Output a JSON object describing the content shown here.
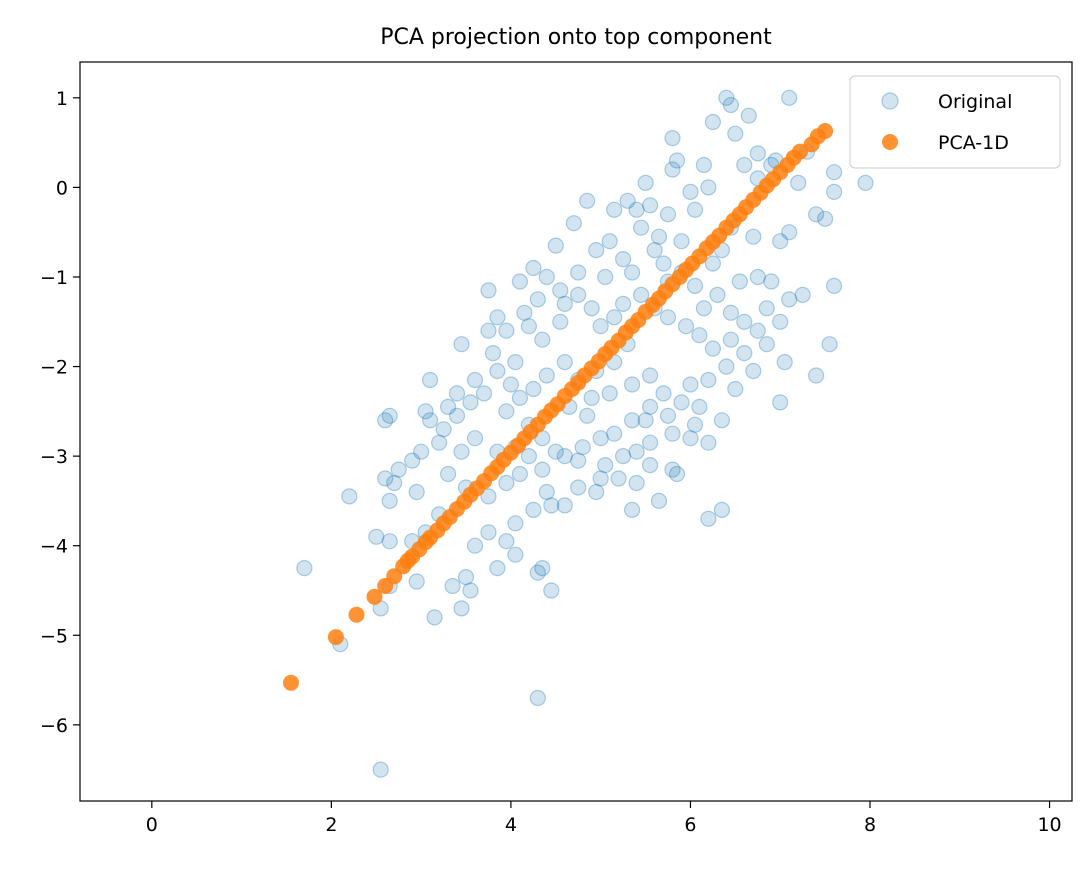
{
  "chart_data": {
    "type": "scatter",
    "title": "PCA projection onto top component",
    "xlabel": "",
    "ylabel": "",
    "xlim": [
      -0.8,
      10.25
    ],
    "ylim": [
      -6.85,
      1.4
    ],
    "xticks": [
      0,
      2,
      4,
      6,
      8,
      10
    ],
    "xtick_labels": [
      "0",
      "2",
      "4",
      "6",
      "8",
      "10"
    ],
    "yticks": [
      1,
      0,
      -1,
      -2,
      -3,
      -4,
      -5,
      -6
    ],
    "ytick_labels": [
      "1",
      "0",
      "−1",
      "−2",
      "−3",
      "−4",
      "−5",
      "−6"
    ],
    "grid": false,
    "legend_position": "top-right",
    "colors": {
      "original": "#1f77b4",
      "pca": "#ff7f0e"
    },
    "series": [
      {
        "name": "Original",
        "style": "hollow-translucent",
        "points": [
          [
            6.4,
            1.0
          ],
          [
            7.1,
            1.0
          ],
          [
            6.45,
            0.92
          ],
          [
            6.25,
            0.73
          ],
          [
            6.65,
            0.8
          ],
          [
            5.8,
            0.55
          ],
          [
            6.5,
            0.6
          ],
          [
            7.3,
            0.4
          ],
          [
            6.75,
            0.38
          ],
          [
            6.95,
            0.3
          ],
          [
            6.9,
            0.25
          ],
          [
            7.6,
            0.17
          ],
          [
            7.95,
            0.05
          ],
          [
            7.6,
            -0.05
          ],
          [
            7.2,
            0.05
          ],
          [
            6.15,
            0.25
          ],
          [
            5.85,
            0.3
          ],
          [
            5.8,
            0.2
          ],
          [
            6.6,
            0.25
          ],
          [
            6.75,
            0.1
          ],
          [
            5.5,
            0.05
          ],
          [
            5.3,
            -0.15
          ],
          [
            5.4,
            -0.25
          ],
          [
            6.2,
            0.0
          ],
          [
            6.0,
            -0.05
          ],
          [
            4.85,
            -0.15
          ],
          [
            5.15,
            -0.25
          ],
          [
            5.55,
            -0.2
          ],
          [
            5.75,
            -0.3
          ],
          [
            6.05,
            -0.25
          ],
          [
            4.7,
            -0.4
          ],
          [
            7.4,
            -0.3
          ],
          [
            7.5,
            -0.35
          ],
          [
            7.1,
            -0.5
          ],
          [
            7.0,
            -0.6
          ],
          [
            6.7,
            -0.55
          ],
          [
            6.45,
            -0.45
          ],
          [
            6.35,
            -0.7
          ],
          [
            4.5,
            -0.65
          ],
          [
            4.25,
            -0.9
          ],
          [
            4.1,
            -1.05
          ],
          [
            3.75,
            -1.15
          ],
          [
            4.4,
            -1.0
          ],
          [
            4.75,
            -0.95
          ],
          [
            4.95,
            -0.7
          ],
          [
            5.1,
            -0.6
          ],
          [
            5.25,
            -0.8
          ],
          [
            5.35,
            -0.95
          ],
          [
            5.6,
            -0.7
          ],
          [
            5.7,
            -0.85
          ],
          [
            5.9,
            -0.95
          ],
          [
            6.05,
            -1.1
          ],
          [
            6.3,
            -1.2
          ],
          [
            6.75,
            -1.0
          ],
          [
            6.9,
            -1.05
          ],
          [
            7.1,
            -1.25
          ],
          [
            7.25,
            -1.2
          ],
          [
            7.6,
            -1.1
          ],
          [
            6.85,
            -1.35
          ],
          [
            6.6,
            -1.5
          ],
          [
            6.45,
            -1.7
          ],
          [
            6.6,
            -1.85
          ],
          [
            6.85,
            -1.75
          ],
          [
            7.05,
            -1.95
          ],
          [
            7.55,
            -1.75
          ],
          [
            7.4,
            -2.1
          ],
          [
            6.7,
            -2.05
          ],
          [
            6.4,
            -2.0
          ],
          [
            6.2,
            -2.15
          ],
          [
            6.0,
            -2.2
          ],
          [
            6.5,
            -2.25
          ],
          [
            7.0,
            -2.4
          ],
          [
            6.1,
            -2.45
          ],
          [
            6.05,
            -2.65
          ],
          [
            5.75,
            -2.55
          ],
          [
            5.55,
            -2.45
          ],
          [
            5.35,
            -2.6
          ],
          [
            5.8,
            -2.75
          ],
          [
            5.55,
            -2.85
          ],
          [
            6.2,
            -2.85
          ],
          [
            5.4,
            -2.95
          ],
          [
            5.25,
            -3.0
          ],
          [
            5.05,
            -3.1
          ],
          [
            5.2,
            -3.25
          ],
          [
            5.55,
            -3.1
          ],
          [
            5.8,
            -3.15
          ],
          [
            5.85,
            -3.2
          ],
          [
            5.65,
            -3.5
          ],
          [
            5.35,
            -3.6
          ],
          [
            4.95,
            -3.4
          ],
          [
            4.75,
            -3.35
          ],
          [
            4.6,
            -3.55
          ],
          [
            4.45,
            -3.55
          ],
          [
            4.25,
            -3.6
          ],
          [
            4.05,
            -3.75
          ],
          [
            3.75,
            -3.85
          ],
          [
            3.6,
            -4.0
          ],
          [
            3.95,
            -3.95
          ],
          [
            4.05,
            -4.1
          ],
          [
            3.85,
            -4.25
          ],
          [
            3.5,
            -4.35
          ],
          [
            3.35,
            -4.45
          ],
          [
            3.55,
            -4.5
          ],
          [
            3.45,
            -4.7
          ],
          [
            3.15,
            -4.8
          ],
          [
            4.35,
            -4.25
          ],
          [
            4.3,
            -4.3
          ],
          [
            4.45,
            -4.5
          ],
          [
            2.95,
            -4.4
          ],
          [
            2.65,
            -4.45
          ],
          [
            2.55,
            -4.7
          ],
          [
            2.1,
            -5.1
          ],
          [
            1.7,
            -4.25
          ],
          [
            2.5,
            -3.9
          ],
          [
            2.65,
            -3.95
          ],
          [
            2.9,
            -3.95
          ],
          [
            3.05,
            -3.85
          ],
          [
            3.2,
            -3.65
          ],
          [
            2.95,
            -3.4
          ],
          [
            2.7,
            -3.3
          ],
          [
            2.6,
            -3.25
          ],
          [
            2.75,
            -3.15
          ],
          [
            2.9,
            -3.05
          ],
          [
            2.2,
            -3.45
          ],
          [
            2.65,
            -3.5
          ],
          [
            3.0,
            -2.95
          ],
          [
            3.2,
            -2.85
          ],
          [
            3.1,
            -2.6
          ],
          [
            3.05,
            -2.5
          ],
          [
            2.6,
            -2.6
          ],
          [
            2.65,
            -2.55
          ],
          [
            3.3,
            -2.45
          ],
          [
            3.55,
            -2.4
          ],
          [
            3.4,
            -2.3
          ],
          [
            3.6,
            -2.15
          ],
          [
            3.85,
            -2.05
          ],
          [
            3.1,
            -2.15
          ],
          [
            3.45,
            -1.75
          ],
          [
            3.8,
            -1.85
          ],
          [
            4.05,
            -1.95
          ],
          [
            3.75,
            -1.6
          ],
          [
            3.85,
            -1.45
          ],
          [
            4.15,
            -1.4
          ],
          [
            4.2,
            -1.55
          ],
          [
            3.95,
            -1.6
          ],
          [
            4.35,
            -1.7
          ],
          [
            4.55,
            -1.5
          ],
          [
            4.6,
            -1.3
          ],
          [
            4.75,
            -1.2
          ],
          [
            4.9,
            -1.35
          ],
          [
            5.0,
            -1.55
          ],
          [
            5.15,
            -1.45
          ],
          [
            5.25,
            -1.3
          ],
          [
            5.45,
            -1.2
          ],
          [
            5.6,
            -1.35
          ],
          [
            5.75,
            -1.45
          ],
          [
            5.95,
            -1.55
          ],
          [
            6.1,
            -1.65
          ],
          [
            6.25,
            -1.8
          ],
          [
            5.3,
            -1.75
          ],
          [
            5.15,
            -1.95
          ],
          [
            4.95,
            -2.05
          ],
          [
            4.75,
            -2.15
          ],
          [
            4.6,
            -1.95
          ],
          [
            4.4,
            -2.1
          ],
          [
            4.25,
            -2.25
          ],
          [
            4.1,
            -2.35
          ],
          [
            3.95,
            -2.5
          ],
          [
            4.2,
            -2.65
          ],
          [
            4.35,
            -2.8
          ],
          [
            4.5,
            -2.95
          ],
          [
            4.2,
            -3.0
          ],
          [
            4.05,
            -2.9
          ],
          [
            3.85,
            -2.95
          ],
          [
            3.6,
            -2.8
          ],
          [
            3.45,
            -2.95
          ],
          [
            3.3,
            -3.2
          ],
          [
            3.5,
            -3.35
          ],
          [
            3.75,
            -3.45
          ],
          [
            3.95,
            -3.3
          ],
          [
            4.1,
            -3.2
          ],
          [
            4.35,
            -3.15
          ],
          [
            4.6,
            -3.0
          ],
          [
            4.8,
            -2.9
          ],
          [
            5.0,
            -2.8
          ],
          [
            5.15,
            -2.75
          ],
          [
            4.85,
            -2.55
          ],
          [
            4.65,
            -2.45
          ],
          [
            4.9,
            -2.35
          ],
          [
            5.1,
            -2.3
          ],
          [
            5.35,
            -2.2
          ],
          [
            5.55,
            -2.1
          ],
          [
            5.7,
            -2.3
          ],
          [
            5.9,
            -2.4
          ],
          [
            6.35,
            -2.6
          ],
          [
            5.45,
            -0.45
          ],
          [
            5.65,
            -0.55
          ],
          [
            5.9,
            -0.6
          ],
          [
            6.25,
            -0.85
          ],
          [
            6.55,
            -1.05
          ],
          [
            5.05,
            -1.0
          ],
          [
            4.55,
            -1.15
          ],
          [
            4.3,
            -1.25
          ],
          [
            5.75,
            -1.05
          ],
          [
            6.15,
            -1.35
          ],
          [
            6.45,
            -1.4
          ],
          [
            6.75,
            -1.6
          ],
          [
            4.0,
            -2.2
          ],
          [
            3.7,
            -2.3
          ],
          [
            3.4,
            -2.55
          ],
          [
            3.25,
            -2.7
          ],
          [
            4.4,
            -3.4
          ],
          [
            4.75,
            -3.05
          ],
          [
            5.0,
            -3.25
          ],
          [
            5.4,
            -3.3
          ],
          [
            5.5,
            -2.6
          ],
          [
            6.0,
            -2.8
          ],
          [
            6.2,
            -3.7
          ],
          [
            6.35,
            -3.6
          ],
          [
            7.0,
            -1.5
          ],
          [
            4.3,
            -5.7
          ],
          [
            2.55,
            -6.5
          ]
        ]
      },
      {
        "name": "PCA-1D",
        "style": "filled",
        "points": [
          [
            1.55,
            -5.53
          ],
          [
            2.05,
            -5.02
          ],
          [
            2.28,
            -4.77
          ],
          [
            2.48,
            -4.57
          ],
          [
            2.6,
            -4.45
          ],
          [
            2.7,
            -4.34
          ],
          [
            2.8,
            -4.23
          ],
          [
            2.85,
            -4.17
          ],
          [
            2.9,
            -4.12
          ],
          [
            2.98,
            -4.04
          ],
          [
            3.05,
            -3.96
          ],
          [
            3.1,
            -3.91
          ],
          [
            3.18,
            -3.83
          ],
          [
            3.25,
            -3.75
          ],
          [
            3.32,
            -3.68
          ],
          [
            3.4,
            -3.59
          ],
          [
            3.48,
            -3.51
          ],
          [
            3.55,
            -3.43
          ],
          [
            3.62,
            -3.36
          ],
          [
            3.7,
            -3.28
          ],
          [
            3.78,
            -3.19
          ],
          [
            3.85,
            -3.12
          ],
          [
            3.92,
            -3.04
          ],
          [
            4.0,
            -2.96
          ],
          [
            4.08,
            -2.88
          ],
          [
            4.15,
            -2.8
          ],
          [
            4.22,
            -2.73
          ],
          [
            4.3,
            -2.65
          ],
          [
            4.38,
            -2.56
          ],
          [
            4.45,
            -2.49
          ],
          [
            4.52,
            -2.42
          ],
          [
            4.6,
            -2.33
          ],
          [
            4.68,
            -2.25
          ],
          [
            4.75,
            -2.18
          ],
          [
            4.82,
            -2.1
          ],
          [
            4.9,
            -2.02
          ],
          [
            4.98,
            -1.94
          ],
          [
            5.05,
            -1.86
          ],
          [
            5.12,
            -1.79
          ],
          [
            5.2,
            -1.71
          ],
          [
            5.28,
            -1.62
          ],
          [
            5.35,
            -1.55
          ],
          [
            5.42,
            -1.48
          ],
          [
            5.5,
            -1.39
          ],
          [
            5.58,
            -1.31
          ],
          [
            5.65,
            -1.24
          ],
          [
            5.72,
            -1.16
          ],
          [
            5.8,
            -1.08
          ],
          [
            5.88,
            -1.0
          ],
          [
            5.95,
            -0.92
          ],
          [
            6.02,
            -0.85
          ],
          [
            6.1,
            -0.77
          ],
          [
            6.18,
            -0.68
          ],
          [
            6.25,
            -0.61
          ],
          [
            6.32,
            -0.54
          ],
          [
            6.4,
            -0.45
          ],
          [
            6.48,
            -0.37
          ],
          [
            6.55,
            -0.3
          ],
          [
            6.62,
            -0.22
          ],
          [
            6.7,
            -0.14
          ],
          [
            6.78,
            -0.06
          ],
          [
            6.85,
            0.02
          ],
          [
            6.92,
            0.09
          ],
          [
            7.0,
            0.17
          ],
          [
            7.08,
            0.25
          ],
          [
            7.15,
            0.33
          ],
          [
            7.22,
            0.4
          ],
          [
            7.35,
            0.48
          ],
          [
            7.42,
            0.57
          ],
          [
            7.5,
            0.63
          ]
        ]
      }
    ]
  }
}
